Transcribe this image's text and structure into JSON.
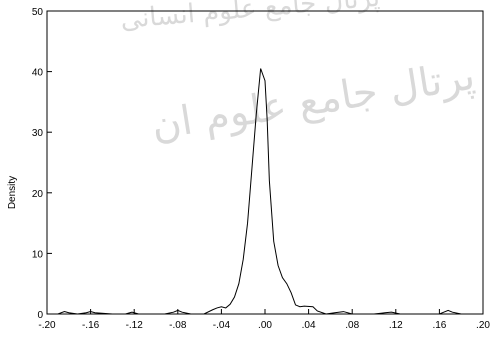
{
  "chart_data": {
    "type": "line",
    "title": "",
    "xlabel": "",
    "ylabel": "Density",
    "xlim": [
      -0.2,
      0.2
    ],
    "ylim": [
      0,
      50
    ],
    "x_tick_labels": [
      "-.20",
      "-.16",
      "-.12",
      "-.08",
      "-.04",
      ".00",
      ".04",
      ".08",
      ".12",
      ".16",
      ".20"
    ],
    "x_tick_values": [
      -0.2,
      -0.16,
      -0.12,
      -0.08,
      -0.04,
      0.0,
      0.04,
      0.08,
      0.12,
      0.16,
      0.2
    ],
    "y_tick_labels": [
      "0",
      "10",
      "20",
      "30",
      "40",
      "50"
    ],
    "y_tick_values": [
      0,
      10,
      20,
      30,
      40,
      50
    ],
    "grid": false,
    "legend": "none",
    "series": [
      {
        "x": [
          -0.2,
          -0.19,
          -0.184,
          -0.18,
          -0.172,
          -0.164,
          -0.16,
          -0.156,
          -0.14,
          -0.128,
          -0.122,
          -0.116,
          -0.1,
          -0.092,
          -0.084,
          -0.08,
          -0.076,
          -0.068,
          -0.056,
          -0.048,
          -0.044,
          -0.04,
          -0.036,
          -0.032,
          -0.028,
          -0.024,
          -0.02,
          -0.016,
          -0.012,
          -0.008,
          -0.004,
          -0.002,
          0.0,
          0.002,
          0.004,
          0.008,
          0.012,
          0.016,
          0.02,
          0.024,
          0.028,
          0.032,
          0.036,
          0.044,
          0.048,
          0.056,
          0.064,
          0.072,
          0.08,
          0.1,
          0.11,
          0.116,
          0.124,
          0.14,
          0.15,
          0.16,
          0.164,
          0.168,
          0.172,
          0.18,
          0.19,
          0.2
        ],
        "y": [
          0,
          0,
          0.4,
          0.2,
          0,
          0.2,
          0.4,
          0.2,
          0,
          0,
          0.3,
          0,
          0,
          0,
          0.3,
          0.6,
          0.3,
          0,
          0,
          0.7,
          1.0,
          1.2,
          1.0,
          1.6,
          2.8,
          5.0,
          9.0,
          15.0,
          24.0,
          33.0,
          40.5,
          39.5,
          38.5,
          32.0,
          22.0,
          12.0,
          8.0,
          6.0,
          5.0,
          3.5,
          1.5,
          1.2,
          1.3,
          1.2,
          0.5,
          0,
          0.2,
          0.4,
          0,
          0,
          0.2,
          0.3,
          0,
          0,
          0,
          0,
          0.3,
          0.6,
          0.3,
          0,
          0,
          0
        ]
      }
    ],
    "line_color": "#000000"
  },
  "watermark": {
    "line1": "پرتال جامع علوم انسانی",
    "line2": "پرتال جامع علوم ان"
  }
}
